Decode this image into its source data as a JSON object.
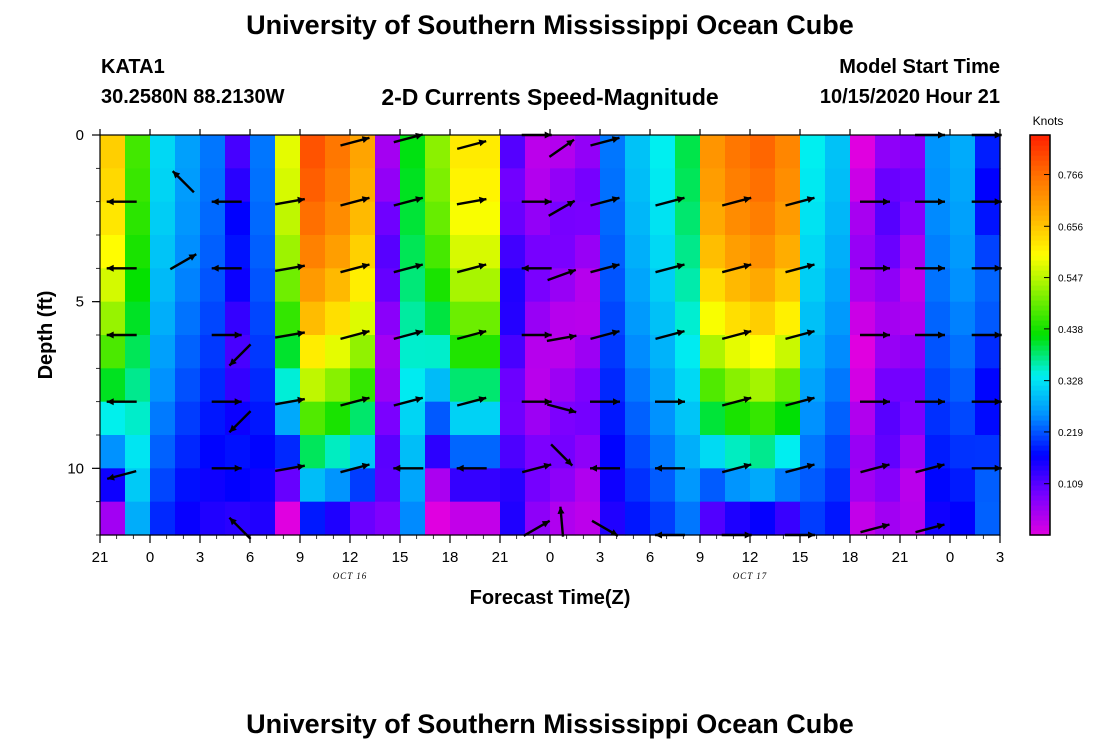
{
  "header": {
    "title": "University of Southern Mississippi Ocean Cube",
    "station": "KATA1",
    "coordinates": "30.2580N 88.2130W",
    "subtitle": "2-D Currents Speed-Magnitude",
    "model_start_label": "Model Start Time",
    "model_start_value": "10/15/2020 Hour 21"
  },
  "footer": {
    "title": "University of Southern Mississippi Ocean Cube"
  },
  "colors": {
    "background": "#ffffff",
    "axis": "#000000",
    "arrow": "#000000",
    "colormap": [
      "#e000e0",
      "#7a00ff",
      "#0000ff",
      "#0090ff",
      "#00f0f0",
      "#00e000",
      "#80f000",
      "#ffff00",
      "#ffb000",
      "#ff7000",
      "#ff2000"
    ]
  },
  "chart_data": {
    "type": "heatmap",
    "title": "2-D Currents Speed-Magnitude",
    "xlabel": "Forecast Time(Z)",
    "ylabel": "Depth (ft)",
    "x_hours": [
      0,
      54
    ],
    "x_tick_labels": [
      "21",
      "0",
      "3",
      "6",
      "9",
      "12",
      "15",
      "18",
      "21",
      "0",
      "3",
      "6",
      "9",
      "12",
      "15",
      "18",
      "21",
      "0",
      "3"
    ],
    "date_labels": [
      {
        "text": "OCT 16",
        "at_hour": 15
      },
      {
        "text": "OCT 17",
        "at_hour": 39
      }
    ],
    "y_range": [
      0,
      12
    ],
    "y_ticks": [
      0,
      5,
      10
    ],
    "colorbar": {
      "label": "Knots",
      "range": [
        0,
        0.85
      ],
      "ticks": [
        0.109,
        0.219,
        0.328,
        0.438,
        0.547,
        0.656,
        0.766
      ]
    },
    "depth_rows": 12,
    "time_columns": 36,
    "speed_profile_knots": [
      0.65,
      0.45,
      0.3,
      0.25,
      0.22,
      0.15,
      0.22,
      0.58,
      0.8,
      0.76,
      0.7,
      0.08,
      0.4,
      0.52,
      0.62,
      0.62,
      0.12,
      0.06,
      0.06,
      0.06,
      0.22,
      0.28,
      0.32,
      0.38,
      0.72,
      0.76,
      0.78,
      0.74,
      0.32,
      0.28,
      0.03,
      0.08,
      0.06,
      0.24,
      0.26,
      0.2
    ],
    "vectors": [
      {
        "hour": 1.3,
        "depth": 2,
        "dir": 180
      },
      {
        "hour": 1.3,
        "depth": 4,
        "dir": 180
      },
      {
        "hour": 1.3,
        "depth": 6,
        "dir": 180
      },
      {
        "hour": 1.3,
        "depth": 8,
        "dir": 180
      },
      {
        "hour": 1.3,
        "depth": 10.2,
        "dir": 195
      },
      {
        "hour": 5.0,
        "depth": 1.4,
        "dir": 135
      },
      {
        "hour": 5.0,
        "depth": 3.8,
        "dir": 30
      },
      {
        "hour": 7.6,
        "depth": 2,
        "dir": 180
      },
      {
        "hour": 7.6,
        "depth": 4,
        "dir": 180
      },
      {
        "hour": 7.6,
        "depth": 6,
        "dir": 0
      },
      {
        "hour": 7.6,
        "depth": 8,
        "dir": 0
      },
      {
        "hour": 7.6,
        "depth": 10,
        "dir": 0
      },
      {
        "hour": 8.4,
        "depth": 6.6,
        "dir": 225
      },
      {
        "hour": 8.4,
        "depth": 8.6,
        "dir": 225
      },
      {
        "hour": 8.4,
        "depth": 11.8,
        "dir": 135
      },
      {
        "hour": 11.4,
        "depth": 2,
        "dir": 10
      },
      {
        "hour": 11.4,
        "depth": 4,
        "dir": 10
      },
      {
        "hour": 11.4,
        "depth": 6,
        "dir": 10
      },
      {
        "hour": 11.4,
        "depth": 8,
        "dir": 10
      },
      {
        "hour": 11.4,
        "depth": 10,
        "dir": 10
      },
      {
        "hour": 15.3,
        "depth": 0.2,
        "dir": 15
      },
      {
        "hour": 15.3,
        "depth": 2,
        "dir": 15
      },
      {
        "hour": 15.3,
        "depth": 4,
        "dir": 15
      },
      {
        "hour": 15.3,
        "depth": 6,
        "dir": 15
      },
      {
        "hour": 15.3,
        "depth": 8,
        "dir": 15
      },
      {
        "hour": 15.3,
        "depth": 10,
        "dir": 15
      },
      {
        "hour": 18.5,
        "depth": 0.1,
        "dir": 15
      },
      {
        "hour": 18.5,
        "depth": 2,
        "dir": 15
      },
      {
        "hour": 18.5,
        "depth": 4,
        "dir": 15
      },
      {
        "hour": 18.5,
        "depth": 6,
        "dir": 15
      },
      {
        "hour": 18.5,
        "depth": 8,
        "dir": 15
      },
      {
        "hour": 18.5,
        "depth": 10,
        "dir": 180
      },
      {
        "hour": 22.3,
        "depth": 0.3,
        "dir": 15
      },
      {
        "hour": 22.3,
        "depth": 2,
        "dir": 10
      },
      {
        "hour": 22.3,
        "depth": 4,
        "dir": 15
      },
      {
        "hour": 22.3,
        "depth": 6,
        "dir": 15
      },
      {
        "hour": 22.3,
        "depth": 8,
        "dir": 15
      },
      {
        "hour": 22.3,
        "depth": 10,
        "dir": 180
      },
      {
        "hour": 26.2,
        "depth": 0,
        "dir": 0
      },
      {
        "hour": 26.2,
        "depth": 2,
        "dir": 0
      },
      {
        "hour": 26.2,
        "depth": 4,
        "dir": 180
      },
      {
        "hour": 26.2,
        "depth": 6,
        "dir": 0
      },
      {
        "hour": 26.2,
        "depth": 8,
        "dir": 0
      },
      {
        "hour": 26.2,
        "depth": 10,
        "dir": 15
      },
      {
        "hour": 26.2,
        "depth": 11.8,
        "dir": 30
      },
      {
        "hour": 27.7,
        "depth": 0.4,
        "dir": 35
      },
      {
        "hour": 27.7,
        "depth": 2.2,
        "dir": 30
      },
      {
        "hour": 27.7,
        "depth": 4.2,
        "dir": 20
      },
      {
        "hour": 27.7,
        "depth": 6.1,
        "dir": 10
      },
      {
        "hour": 27.7,
        "depth": 8.2,
        "dir": 345
      },
      {
        "hour": 27.7,
        "depth": 9.6,
        "dir": 315
      },
      {
        "hour": 27.7,
        "depth": 11.6,
        "dir": 95
      },
      {
        "hour": 30.3,
        "depth": 0.2,
        "dir": 15
      },
      {
        "hour": 30.3,
        "depth": 2,
        "dir": 15
      },
      {
        "hour": 30.3,
        "depth": 4,
        "dir": 15
      },
      {
        "hour": 30.3,
        "depth": 6,
        "dir": 15
      },
      {
        "hour": 30.3,
        "depth": 8,
        "dir": 0
      },
      {
        "hour": 30.3,
        "depth": 10,
        "dir": 180
      },
      {
        "hour": 30.3,
        "depth": 11.8,
        "dir": 330
      },
      {
        "hour": 34.2,
        "depth": 2,
        "dir": 15
      },
      {
        "hour": 34.2,
        "depth": 4,
        "dir": 15
      },
      {
        "hour": 34.2,
        "depth": 6,
        "dir": 15
      },
      {
        "hour": 34.2,
        "depth": 8,
        "dir": 0
      },
      {
        "hour": 34.2,
        "depth": 10,
        "dir": 180
      },
      {
        "hour": 34.2,
        "depth": 12,
        "dir": 180
      },
      {
        "hour": 38.2,
        "depth": 2,
        "dir": 15
      },
      {
        "hour": 38.2,
        "depth": 4,
        "dir": 15
      },
      {
        "hour": 38.2,
        "depth": 6,
        "dir": 15
      },
      {
        "hour": 38.2,
        "depth": 8,
        "dir": 15
      },
      {
        "hour": 38.2,
        "depth": 10,
        "dir": 15
      },
      {
        "hour": 38.2,
        "depth": 12,
        "dir": 0
      },
      {
        "hour": 42.0,
        "depth": 2,
        "dir": 15
      },
      {
        "hour": 42.0,
        "depth": 4,
        "dir": 15
      },
      {
        "hour": 42.0,
        "depth": 6,
        "dir": 15
      },
      {
        "hour": 42.0,
        "depth": 8,
        "dir": 15
      },
      {
        "hour": 42.0,
        "depth": 10,
        "dir": 15
      },
      {
        "hour": 42.0,
        "depth": 12,
        "dir": 0
      },
      {
        "hour": 46.5,
        "depth": 2,
        "dir": 0
      },
      {
        "hour": 46.5,
        "depth": 4,
        "dir": 0
      },
      {
        "hour": 46.5,
        "depth": 6,
        "dir": 0
      },
      {
        "hour": 46.5,
        "depth": 8,
        "dir": 0
      },
      {
        "hour": 46.5,
        "depth": 10,
        "dir": 15
      },
      {
        "hour": 46.5,
        "depth": 11.8,
        "dir": 15
      },
      {
        "hour": 49.8,
        "depth": 0,
        "dir": 0
      },
      {
        "hour": 49.8,
        "depth": 2,
        "dir": 0
      },
      {
        "hour": 49.8,
        "depth": 4,
        "dir": 0
      },
      {
        "hour": 49.8,
        "depth": 6,
        "dir": 0
      },
      {
        "hour": 49.8,
        "depth": 8,
        "dir": 0
      },
      {
        "hour": 49.8,
        "depth": 10,
        "dir": 15
      },
      {
        "hour": 49.8,
        "depth": 11.8,
        "dir": 15
      },
      {
        "hour": 53.2,
        "depth": 0,
        "dir": 0
      },
      {
        "hour": 53.2,
        "depth": 2,
        "dir": 0
      },
      {
        "hour": 53.2,
        "depth": 4,
        "dir": 0
      },
      {
        "hour": 53.2,
        "depth": 6,
        "dir": 0
      },
      {
        "hour": 53.2,
        "depth": 8,
        "dir": 0
      },
      {
        "hour": 53.2,
        "depth": 10,
        "dir": 0
      }
    ]
  }
}
